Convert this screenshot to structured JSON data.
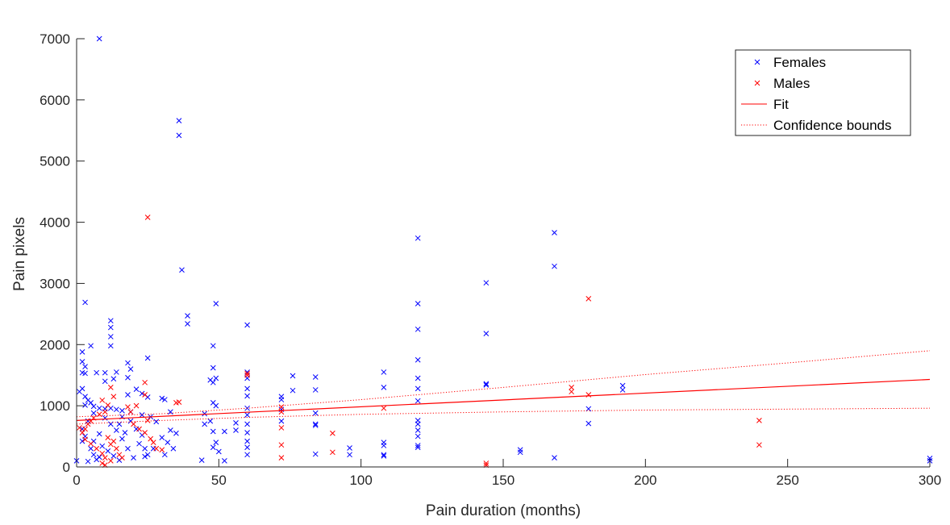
{
  "chart_data": {
    "type": "scatter",
    "xlabel": "Pain duration (months)",
    "ylabel": "Pain pixels",
    "xlim": [
      0,
      300
    ],
    "ylim": [
      0,
      7000
    ],
    "xticks": [
      0,
      50,
      100,
      150,
      200,
      250,
      300
    ],
    "yticks": [
      0,
      1000,
      2000,
      3000,
      4000,
      5000,
      6000,
      7000
    ],
    "grid": false,
    "legend_position": "top-right",
    "colors": {
      "females": "#0000ff",
      "males": "#ff0000",
      "fit": "#ff0000",
      "confidence": "#ff0000"
    },
    "series": [
      {
        "name": "Females",
        "marker": "x",
        "color": "#0000ff",
        "points": [
          [
            8,
            7000
          ],
          [
            36,
            5660
          ],
          [
            36,
            5420
          ],
          [
            37,
            3220
          ],
          [
            39,
            2470
          ],
          [
            39,
            2340
          ],
          [
            3,
            2690
          ],
          [
            12,
            2390
          ],
          [
            12,
            2280
          ],
          [
            12,
            2130
          ],
          [
            12,
            1980
          ],
          [
            5,
            1980
          ],
          [
            2,
            1880
          ],
          [
            2,
            1720
          ],
          [
            3,
            1640
          ],
          [
            2,
            1540
          ],
          [
            3,
            1530
          ],
          [
            7,
            1540
          ],
          [
            10,
            1540
          ],
          [
            14,
            1550
          ],
          [
            10,
            1400
          ],
          [
            13,
            1440
          ],
          [
            18,
            1700
          ],
          [
            19,
            1600
          ],
          [
            25,
            1780
          ],
          [
            18,
            1460
          ],
          [
            21,
            1270
          ],
          [
            23,
            1200
          ],
          [
            25,
            1140
          ],
          [
            18,
            1180
          ],
          [
            2,
            1280
          ],
          [
            1,
            1230
          ],
          [
            3,
            1150
          ],
          [
            4,
            1090
          ],
          [
            5,
            1050
          ],
          [
            3,
            1010
          ],
          [
            6,
            990
          ],
          [
            8,
            960
          ],
          [
            10,
            950
          ],
          [
            12,
            960
          ],
          [
            14,
            940
          ],
          [
            16,
            920
          ],
          [
            19,
            900
          ],
          [
            23,
            850
          ],
          [
            26,
            820
          ],
          [
            30,
            1120
          ],
          [
            31,
            1100
          ],
          [
            33,
            900
          ],
          [
            28,
            740
          ],
          [
            33,
            600
          ],
          [
            35,
            550
          ],
          [
            30,
            480
          ],
          [
            32,
            400
          ],
          [
            34,
            300
          ],
          [
            31,
            200
          ],
          [
            22,
            380
          ],
          [
            24,
            300
          ],
          [
            25,
            200
          ],
          [
            24,
            170
          ],
          [
            27,
            300
          ],
          [
            20,
            150
          ],
          [
            18,
            300
          ],
          [
            16,
            460
          ],
          [
            14,
            600
          ],
          [
            12,
            700
          ],
          [
            10,
            800
          ],
          [
            8,
            540
          ],
          [
            6,
            420
          ],
          [
            5,
            300
          ],
          [
            6,
            200
          ],
          [
            7,
            120
          ],
          [
            8,
            160
          ],
          [
            4,
            90
          ],
          [
            0,
            100
          ],
          [
            2,
            420
          ],
          [
            2,
            620
          ],
          [
            4,
            750
          ],
          [
            3,
            500
          ],
          [
            6,
            880
          ],
          [
            9,
            340
          ],
          [
            11,
            260
          ],
          [
            13,
            180
          ],
          [
            15,
            110
          ],
          [
            17,
            560
          ],
          [
            19,
            750
          ],
          [
            21,
            620
          ],
          [
            23,
            520
          ],
          [
            15,
            700
          ],
          [
            16,
            820
          ],
          [
            48,
            1980
          ],
          [
            48,
            1620
          ],
          [
            47,
            1420
          ],
          [
            48,
            1380
          ],
          [
            49,
            1450
          ],
          [
            48,
            1050
          ],
          [
            49,
            1000
          ],
          [
            47,
            750
          ],
          [
            48,
            580
          ],
          [
            49,
            400
          ],
          [
            48,
            320
          ],
          [
            50,
            250
          ],
          [
            52,
            100
          ],
          [
            44,
            110
          ],
          [
            45,
            700
          ],
          [
            45,
            870
          ],
          [
            49,
            2670
          ],
          [
            60,
            2320
          ],
          [
            60,
            1550
          ],
          [
            60,
            1450
          ],
          [
            60,
            1280
          ],
          [
            60,
            1160
          ],
          [
            60,
            960
          ],
          [
            60,
            850
          ],
          [
            60,
            700
          ],
          [
            60,
            560
          ],
          [
            60,
            420
          ],
          [
            60,
            320
          ],
          [
            60,
            200
          ],
          [
            52,
            580
          ],
          [
            56,
            720
          ],
          [
            56,
            600
          ],
          [
            72,
            1150
          ],
          [
            72,
            1100
          ],
          [
            72,
            940
          ],
          [
            72,
            750
          ],
          [
            76,
            1490
          ],
          [
            76,
            1250
          ],
          [
            84,
            1470
          ],
          [
            84,
            1260
          ],
          [
            84,
            880
          ],
          [
            84,
            700
          ],
          [
            84,
            680
          ],
          [
            84,
            210
          ],
          [
            96,
            310
          ],
          [
            96,
            200
          ],
          [
            108,
            1550
          ],
          [
            108,
            1300
          ],
          [
            108,
            400
          ],
          [
            108,
            350
          ],
          [
            108,
            200
          ],
          [
            108,
            180
          ],
          [
            120,
            3740
          ],
          [
            120,
            2670
          ],
          [
            120,
            2250
          ],
          [
            120,
            1750
          ],
          [
            120,
            1450
          ],
          [
            120,
            1280
          ],
          [
            120,
            1080
          ],
          [
            120,
            760
          ],
          [
            120,
            700
          ],
          [
            120,
            600
          ],
          [
            120,
            500
          ],
          [
            120,
            350
          ],
          [
            120,
            320
          ],
          [
            144,
            3010
          ],
          [
            144,
            2180
          ],
          [
            144,
            1360
          ],
          [
            144,
            1340
          ],
          [
            156,
            280
          ],
          [
            156,
            240
          ],
          [
            168,
            3830
          ],
          [
            168,
            3280
          ],
          [
            168,
            150
          ],
          [
            180,
            950
          ],
          [
            180,
            710
          ],
          [
            192,
            1330
          ],
          [
            192,
            1260
          ],
          [
            300,
            140
          ],
          [
            300,
            100
          ]
        ]
      },
      {
        "name": "Males",
        "marker": "x",
        "color": "#ff0000",
        "points": [
          [
            25,
            4080
          ],
          [
            24,
            1380
          ],
          [
            24,
            1180
          ],
          [
            36,
            1060
          ],
          [
            12,
            1300
          ],
          [
            13,
            1150
          ],
          [
            9,
            1090
          ],
          [
            11,
            1010
          ],
          [
            10,
            900
          ],
          [
            8,
            860
          ],
          [
            6,
            800
          ],
          [
            5,
            750
          ],
          [
            4,
            700
          ],
          [
            3,
            620
          ],
          [
            2,
            560
          ],
          [
            1,
            640
          ],
          [
            3,
            450
          ],
          [
            5,
            380
          ],
          [
            7,
            300
          ],
          [
            9,
            220
          ],
          [
            10,
            150
          ],
          [
            12,
            100
          ],
          [
            9,
            60
          ],
          [
            10,
            30
          ],
          [
            11,
            480
          ],
          [
            13,
            420
          ],
          [
            12,
            370
          ],
          [
            14,
            300
          ],
          [
            15,
            200
          ],
          [
            16,
            150
          ],
          [
            18,
            980
          ],
          [
            19,
            900
          ],
          [
            20,
            700
          ],
          [
            21,
            1000
          ],
          [
            22,
            620
          ],
          [
            24,
            560
          ],
          [
            26,
            460
          ],
          [
            27,
            400
          ],
          [
            28,
            300
          ],
          [
            30,
            280
          ],
          [
            25,
            760
          ],
          [
            35,
            1050
          ],
          [
            60,
            1530
          ],
          [
            60,
            1500
          ],
          [
            72,
            980
          ],
          [
            72,
            900
          ],
          [
            72,
            640
          ],
          [
            72,
            360
          ],
          [
            72,
            150
          ],
          [
            90,
            550
          ],
          [
            90,
            240
          ],
          [
            108,
            960
          ],
          [
            144,
            60
          ],
          [
            144,
            30
          ],
          [
            174,
            1300
          ],
          [
            174,
            1230
          ],
          [
            180,
            2750
          ],
          [
            180,
            1180
          ],
          [
            240,
            760
          ],
          [
            240,
            360
          ]
        ]
      }
    ],
    "fit": {
      "name": "Fit",
      "x": [
        0,
        300
      ],
      "y": [
        760,
        1430
      ]
    },
    "confidence_bounds": {
      "name": "Confidence bounds",
      "upper": {
        "x": [
          0,
          30,
          60,
          100,
          150,
          200,
          250,
          300
        ],
        "y": [
          820,
          870,
          960,
          1100,
          1300,
          1510,
          1700,
          1900
        ]
      },
      "lower": {
        "x": [
          0,
          30,
          60,
          100,
          150,
          200,
          250,
          300
        ],
        "y": [
          700,
          760,
          810,
          860,
          900,
          930,
          945,
          960
        ]
      }
    }
  }
}
